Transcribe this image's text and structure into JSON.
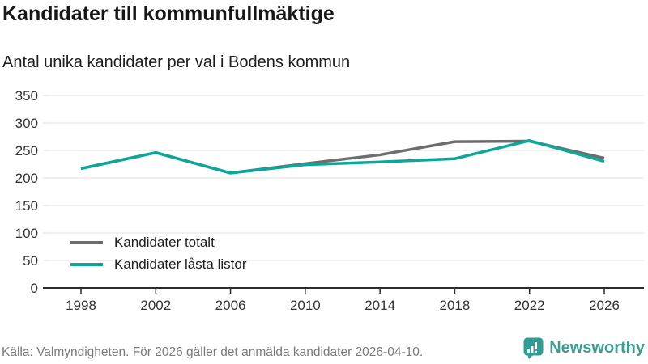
{
  "header": {
    "title": "Kandidater till kommunfullmäktige",
    "subtitle": "Antal unika kandidater per val i Bodens kommun"
  },
  "chart_data": {
    "type": "line",
    "categories": [
      "1998",
      "2002",
      "2006",
      "2010",
      "2014",
      "2018",
      "2022",
      "2026"
    ],
    "series": [
      {
        "name": "Kandidater totalt",
        "color": "#6d6d6d",
        "values": [
          217,
          246,
          209,
          226,
          242,
          266,
          267,
          236
        ]
      },
      {
        "name": "Kandidater låsta listor",
        "color": "#0ba79b",
        "values": [
          217,
          246,
          209,
          224,
          229,
          235,
          268,
          230
        ]
      }
    ],
    "title": "Kandidater till kommunfullmäktige",
    "subtitle": "Antal unika kandidater per val i Bodens kommun",
    "xlabel": "",
    "ylabel": "",
    "ylim": [
      0,
      350
    ],
    "yticks": [
      0,
      50,
      100,
      150,
      200,
      250,
      300,
      350
    ],
    "grid": true,
    "legend_position": "inside-bottom-left",
    "axis_color": "#2d2d2d",
    "gridline_color": "#e2e2e2",
    "tick_label_color": "#333333"
  },
  "footer": {
    "source": "Källa: Valmyndigheten. För 2026 gäller det anmälda kandidater 2026-04-10.",
    "brand": "Newsworthy",
    "brand_color": "#3a9c95"
  }
}
